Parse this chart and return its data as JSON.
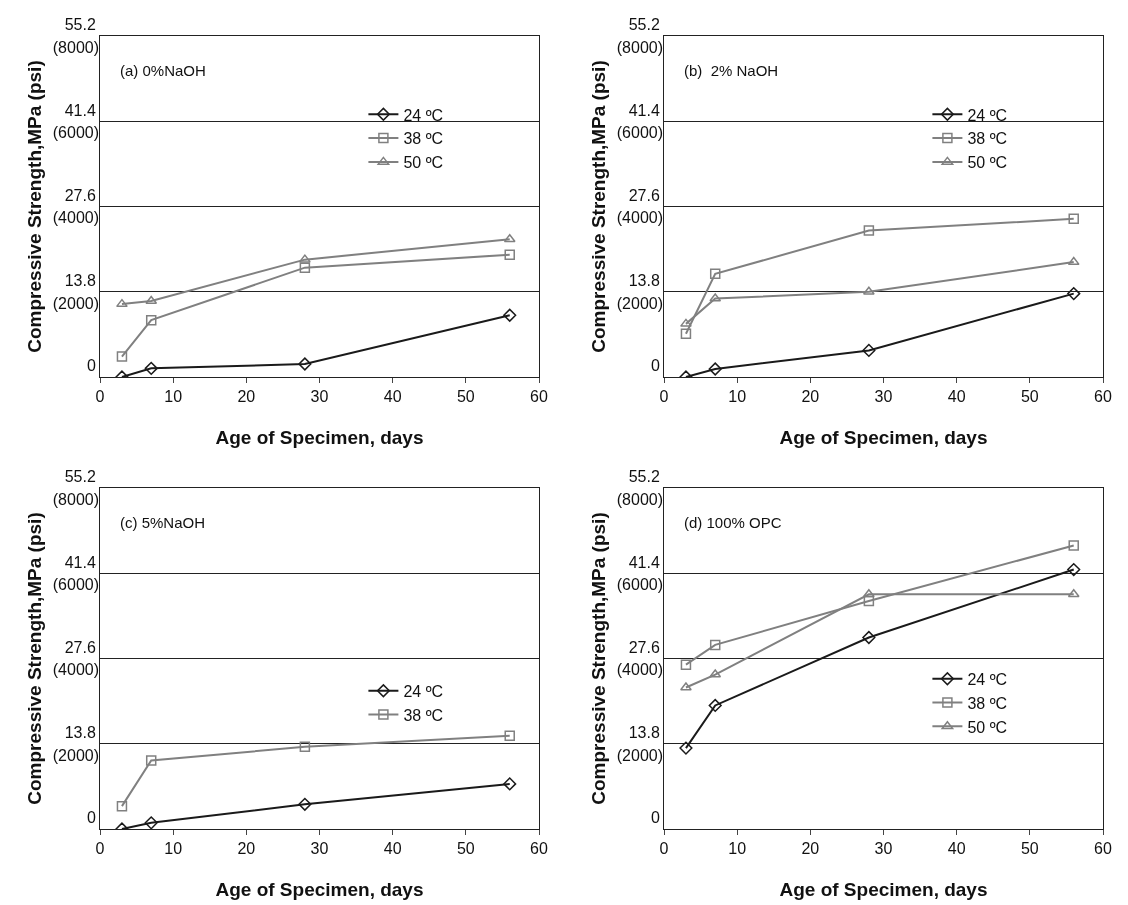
{
  "chart_data": [
    {
      "type": "line",
      "annotations": [
        "(a) 0%NaOH"
      ],
      "xlabel": "Age of Specimen, days",
      "y2label": "Compressive Strength,MPa (psi)",
      "x": [
        3,
        7,
        28,
        56
      ],
      "xlim": [
        0,
        60
      ],
      "xticks": [
        0,
        10,
        20,
        30,
        40,
        50,
        60
      ],
      "ylim": [
        0,
        55.2
      ],
      "yticks": [
        0,
        13.8,
        27.6,
        41.4,
        55.2
      ],
      "y2lim": [
        0,
        8000
      ],
      "y2ticks": [
        {
          "value": 2000,
          "label": "(2000)"
        },
        {
          "value": 4000,
          "label": "(4000)"
        },
        {
          "value": 6000,
          "label": "(6000)"
        },
        {
          "value": 8000,
          "label": "(8000)"
        }
      ],
      "grid": "y",
      "legend": "top right",
      "line_style": "solid",
      "series": [
        {
          "name": "24 ºC",
          "color": "#1a1a1a",
          "marker": "diamond",
          "values": [
            0,
            1.4,
            2.1,
            10.0
          ]
        },
        {
          "name": "38 ºC",
          "color": "#808080",
          "marker": "square",
          "values": [
            3.3,
            9.2,
            17.7,
            19.8
          ]
        },
        {
          "name": "50 ºC",
          "color": "#808080",
          "marker": "triangle",
          "values": [
            11.8,
            12.3,
            19.0,
            22.3
          ]
        }
      ]
    },
    {
      "type": "line",
      "annotations": [
        "(b)  2% NaOH"
      ],
      "xlabel": "Age of Specimen, days",
      "y2label": "Compressive Strength,MPa (psi)",
      "x": [
        3,
        7,
        28,
        56
      ],
      "xlim": [
        0,
        60
      ],
      "xticks": [
        0,
        10,
        20,
        30,
        40,
        50,
        60
      ],
      "ylim": [
        0,
        55.2
      ],
      "yticks": [
        0,
        13.8,
        27.6,
        41.4,
        55.2
      ],
      "y2lim": [
        0,
        8000
      ],
      "y2ticks": [
        {
          "value": 2000,
          "label": "(2000)"
        },
        {
          "value": 4000,
          "label": "(4000)"
        },
        {
          "value": 6000,
          "label": "(6000)"
        },
        {
          "value": 8000,
          "label": "(8000)"
        }
      ],
      "grid": "y",
      "legend": "top right",
      "line_style": "solid",
      "series": [
        {
          "name": "24 ºC",
          "color": "#1a1a1a",
          "marker": "diamond",
          "values": [
            0,
            1.3,
            4.3,
            13.5
          ]
        },
        {
          "name": "38 ºC",
          "color": "#808080",
          "marker": "square",
          "values": [
            7.0,
            16.7,
            23.7,
            25.6
          ]
        },
        {
          "name": "50 ºC",
          "color": "#808080",
          "marker": "triangle",
          "values": [
            8.6,
            12.7,
            13.8,
            18.6
          ]
        }
      ]
    },
    {
      "type": "line",
      "annotations": [
        "(c) 5%NaOH"
      ],
      "xlabel": "Age of Specimen, days",
      "y2label": "Compressive Strength,MPa (psi)",
      "x": [
        3,
        7,
        28,
        56
      ],
      "xlim": [
        0,
        60
      ],
      "xticks": [
        0,
        10,
        20,
        30,
        40,
        50,
        60
      ],
      "ylim": [
        0,
        55.2
      ],
      "yticks": [
        0,
        13.8,
        27.6,
        41.4,
        55.2
      ],
      "y2lim": [
        0,
        8000
      ],
      "y2ticks": [
        {
          "value": 2000,
          "label": "(2000)"
        },
        {
          "value": 4000,
          "label": "(4000)"
        },
        {
          "value": 6000,
          "label": "(6000)"
        },
        {
          "value": 8000,
          "label": "(8000)"
        }
      ],
      "grid": "y",
      "legend": "right",
      "line_style": "solid",
      "series": [
        {
          "name": "24 ºC",
          "color": "#1a1a1a",
          "marker": "diamond",
          "values": [
            0,
            1.0,
            4.0,
            7.3
          ]
        },
        {
          "name": "38 ºC",
          "color": "#808080",
          "marker": "square",
          "values": [
            3.7,
            11.1,
            13.3,
            15.1
          ]
        }
      ]
    },
    {
      "type": "line",
      "annotations": [
        "(d) 100% OPC"
      ],
      "xlabel": "Age of Specimen, days",
      "y2label": "Compressive Strength,MPa (psi)",
      "x": [
        3,
        7,
        28,
        56
      ],
      "xlim": [
        0,
        60
      ],
      "xticks": [
        0,
        10,
        20,
        30,
        40,
        50,
        60
      ],
      "ylim": [
        0,
        55.2
      ],
      "yticks": [
        0,
        13.8,
        27.6,
        41.4,
        55.2
      ],
      "y2lim": [
        0,
        8000
      ],
      "y2ticks": [
        {
          "value": 2000,
          "label": "(2000)"
        },
        {
          "value": 4000,
          "label": "(4000)"
        },
        {
          "value": 6000,
          "label": "(6000)"
        },
        {
          "value": 8000,
          "label": "(8000)"
        }
      ],
      "grid": "y",
      "legend": "right",
      "line_style": "solid",
      "series": [
        {
          "name": "24 ºC",
          "color": "#1a1a1a",
          "marker": "diamond",
          "values": [
            13.1,
            20.0,
            31.0,
            42.0
          ]
        },
        {
          "name": "38 ºC",
          "color": "#808080",
          "marker": "square",
          "values": [
            26.6,
            29.8,
            36.9,
            45.9
          ]
        },
        {
          "name": "50 ºC",
          "color": "#808080",
          "marker": "triangle",
          "values": [
            22.9,
            25.0,
            38.0,
            38.0
          ]
        }
      ]
    }
  ]
}
